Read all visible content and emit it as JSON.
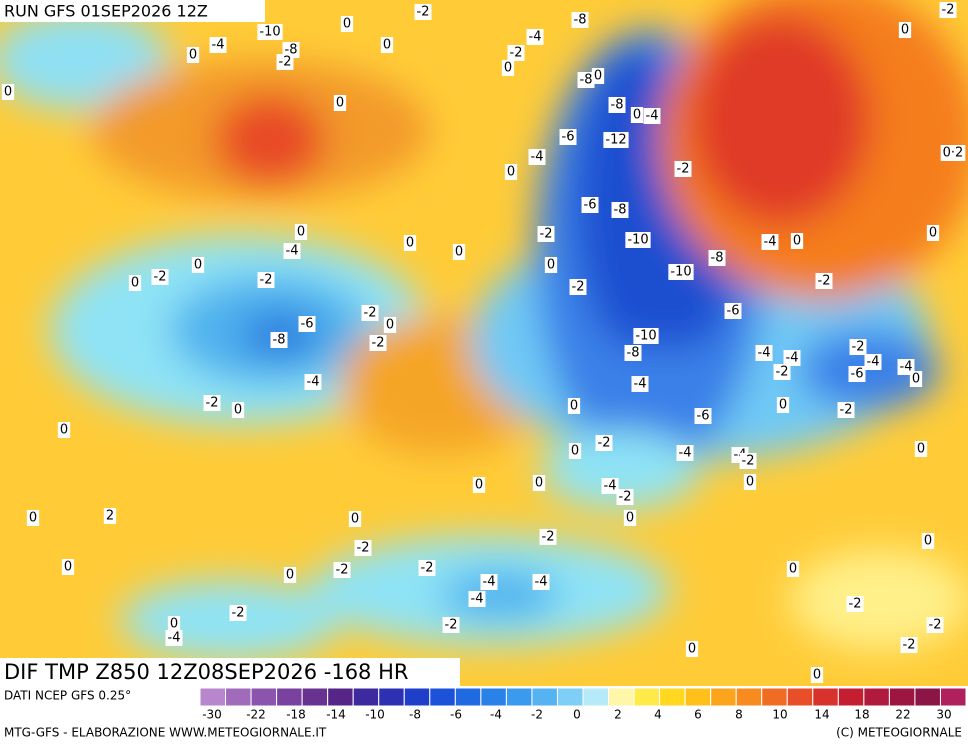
{
  "header": {
    "run": "RUN GFS 01SEP2026 12Z"
  },
  "title": "DIF TMP Z850 12Z08SEP2026 -168 HR",
  "contour_labels": [
    "-2",
    "-2",
    "-8",
    "0",
    "-10",
    "-4",
    "0",
    "-4",
    "-8",
    "0",
    "-2",
    "-2",
    "0",
    "0",
    "0",
    "-8",
    "0",
    "0",
    "-8",
    "-4",
    "0",
    "-6",
    "-12",
    "-4",
    "-2",
    "0",
    "0·2",
    "-6",
    "-8",
    "0",
    "-2",
    "0",
    "-4",
    "-10",
    "-4",
    "0",
    "0",
    "0",
    "0",
    "-8",
    "-2",
    "0",
    "-2",
    "0",
    "-10",
    "-2",
    "-2",
    "-6",
    "-2",
    "0",
    "-6",
    "-8",
    "-2",
    "-10",
    "-8",
    "-2",
    "-4",
    "-4",
    "-2",
    "-4",
    "-4",
    "-6",
    "-4",
    "-4",
    "0",
    "-2",
    "0",
    "0",
    "0",
    "-2",
    "-6",
    "0",
    "-2",
    "0",
    "-4",
    "0",
    "-4",
    "-2",
    "0",
    "0",
    "0",
    "-4",
    "-2",
    "0",
    "2",
    "0",
    "0",
    "-2",
    "-2",
    "0",
    "0",
    "-2",
    "-2",
    "0",
    "0",
    "-4",
    "-4",
    "-4",
    "-2",
    "-2",
    "0",
    "-2",
    "-2",
    "-4",
    "-2",
    "0",
    "0"
  ],
  "legend": {
    "source": "DATI NCEP GFS 0.25°",
    "colors": [
      "#b886cc",
      "#a06bbb",
      "#8c55ad",
      "#7a429f",
      "#683291",
      "#552687",
      "#3d2a9e",
      "#2c31b4",
      "#1f3fca",
      "#1b52d9",
      "#1f69e1",
      "#2a81e8",
      "#3b99ee",
      "#56b3f2",
      "#7ecef6",
      "#b6eaf8",
      "#fff6a8",
      "#ffea4a",
      "#ffd81f",
      "#ffc01a",
      "#fca51c",
      "#f78b1e",
      "#f06c22",
      "#e84f28",
      "#d8322c",
      "#c41f31",
      "#b01a3c",
      "#9c1641",
      "#8a1546",
      "#b0205c"
    ],
    "labels": [
      "-30",
      "-22",
      "-18",
      "-14",
      "-10",
      "-8",
      "-6",
      "-4",
      "-2",
      "0",
      "2",
      "4",
      "6",
      "8",
      "10",
      "14",
      "18",
      "22",
      "30"
    ]
  },
  "footer": {
    "credit": "MTG-GFS - ELABORAZIONE WWW.METEOGIORNALE.IT",
    "copyright": "(C) METEOGIORNALE"
  }
}
